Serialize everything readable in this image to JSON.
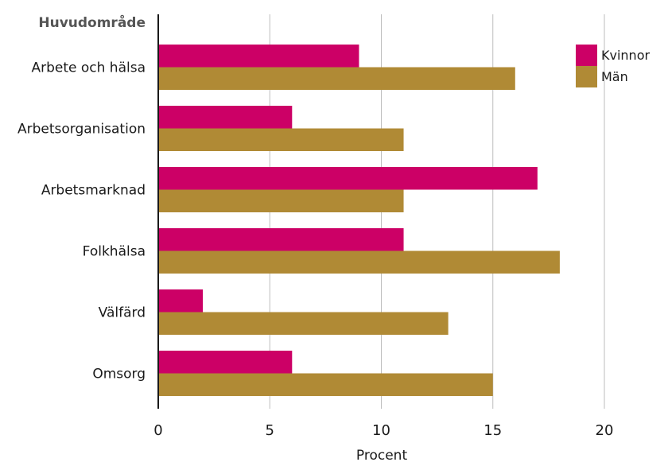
{
  "chart_data": {
    "type": "bar",
    "orientation": "horizontal",
    "ycat_title": "Huvudområde",
    "xlabel": "Procent",
    "categories": [
      "Arbete och hälsa",
      "Arbetsorganisation",
      "Arbetsmarknad",
      "Folkhälsa",
      "Välfärd",
      "Omsorg"
    ],
    "series": [
      {
        "name": "Kvinnor",
        "color": "#cc0066",
        "values": [
          9,
          6,
          17,
          11,
          2,
          6
        ]
      },
      {
        "name": "Män",
        "color": "#b08a35",
        "values": [
          16,
          11,
          11,
          18,
          13,
          15
        ]
      }
    ],
    "xlim": [
      0,
      20
    ],
    "xticks": [
      "0",
      "5",
      "10",
      "15",
      "20"
    ],
    "grid": true,
    "legend_placement": "top-right"
  }
}
